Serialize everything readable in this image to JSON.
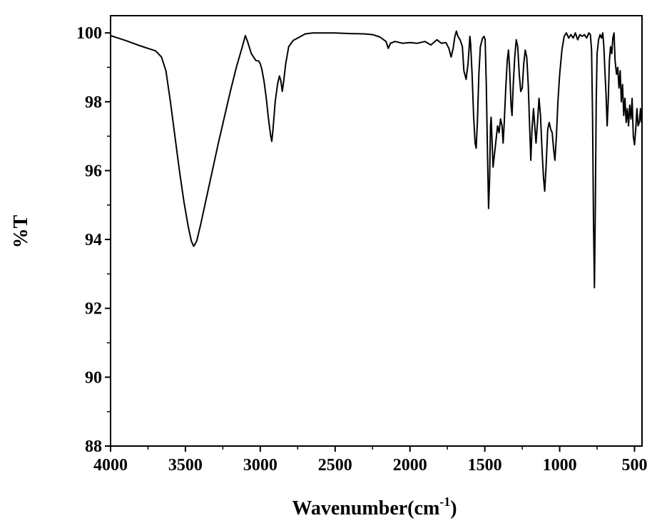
{
  "chart_data": {
    "type": "line",
    "xlabel": {
      "base": "Wavenumber(cm",
      "sup": "-1",
      "close": ")"
    },
    "ylabel": "%T",
    "xlim": [
      4000,
      450
    ],
    "ylim": [
      88,
      100.5
    ],
    "x_ticks": [
      4000,
      3500,
      3000,
      2500,
      2000,
      1500,
      1000,
      500
    ],
    "x_tick_labels": [
      "4000",
      "3500",
      "3000",
      "2500",
      "2000",
      "1500",
      "1000",
      "500"
    ],
    "y_ticks": [
      88,
      90,
      92,
      94,
      96,
      98,
      100
    ],
    "y_tick_labels": [
      "88",
      "90",
      "92",
      "94",
      "96",
      "98",
      "100"
    ],
    "grid": false,
    "series": [
      {
        "color": "#000000",
        "points": [
          [
            4000,
            99.92
          ],
          [
            3950,
            99.85
          ],
          [
            3900,
            99.78
          ],
          [
            3850,
            99.7
          ],
          [
            3800,
            99.62
          ],
          [
            3750,
            99.55
          ],
          [
            3700,
            99.48
          ],
          [
            3660,
            99.3
          ],
          [
            3630,
            98.9
          ],
          [
            3600,
            98.0
          ],
          [
            3570,
            97.0
          ],
          [
            3540,
            96.0
          ],
          [
            3510,
            95.1
          ],
          [
            3480,
            94.35
          ],
          [
            3460,
            93.95
          ],
          [
            3445,
            93.8
          ],
          [
            3425,
            93.95
          ],
          [
            3400,
            94.4
          ],
          [
            3360,
            95.2
          ],
          [
            3320,
            96.0
          ],
          [
            3280,
            96.8
          ],
          [
            3240,
            97.55
          ],
          [
            3200,
            98.3
          ],
          [
            3160,
            99.0
          ],
          [
            3120,
            99.6
          ],
          [
            3100,
            99.92
          ],
          [
            3085,
            99.75
          ],
          [
            3060,
            99.4
          ],
          [
            3030,
            99.2
          ],
          [
            3010,
            99.18
          ],
          [
            3000,
            99.1
          ],
          [
            2990,
            98.95
          ],
          [
            2975,
            98.6
          ],
          [
            2960,
            98.1
          ],
          [
            2945,
            97.5
          ],
          [
            2930,
            97.0
          ],
          [
            2923,
            96.85
          ],
          [
            2915,
            97.2
          ],
          [
            2900,
            98.0
          ],
          [
            2885,
            98.5
          ],
          [
            2872,
            98.75
          ],
          [
            2862,
            98.6
          ],
          [
            2853,
            98.3
          ],
          [
            2845,
            98.55
          ],
          [
            2830,
            99.1
          ],
          [
            2810,
            99.6
          ],
          [
            2780,
            99.78
          ],
          [
            2750,
            99.85
          ],
          [
            2700,
            99.97
          ],
          [
            2650,
            100.0
          ],
          [
            2600,
            100.0
          ],
          [
            2500,
            100.0
          ],
          [
            2400,
            99.98
          ],
          [
            2300,
            99.97
          ],
          [
            2250,
            99.95
          ],
          [
            2200,
            99.88
          ],
          [
            2160,
            99.75
          ],
          [
            2145,
            99.55
          ],
          [
            2130,
            99.7
          ],
          [
            2100,
            99.75
          ],
          [
            2050,
            99.7
          ],
          [
            2000,
            99.72
          ],
          [
            1950,
            99.7
          ],
          [
            1900,
            99.75
          ],
          [
            1860,
            99.65
          ],
          [
            1820,
            99.8
          ],
          [
            1790,
            99.7
          ],
          [
            1760,
            99.72
          ],
          [
            1740,
            99.55
          ],
          [
            1725,
            99.3
          ],
          [
            1712,
            99.55
          ],
          [
            1700,
            99.9
          ],
          [
            1690,
            100.05
          ],
          [
            1680,
            99.9
          ],
          [
            1665,
            99.8
          ],
          [
            1650,
            99.6
          ],
          [
            1640,
            98.9
          ],
          [
            1625,
            98.65
          ],
          [
            1612,
            99.1
          ],
          [
            1600,
            99.9
          ],
          [
            1595,
            99.7
          ],
          [
            1585,
            98.8
          ],
          [
            1575,
            97.6
          ],
          [
            1565,
            96.8
          ],
          [
            1558,
            96.65
          ],
          [
            1550,
            97.4
          ],
          [
            1540,
            98.8
          ],
          [
            1530,
            99.6
          ],
          [
            1515,
            99.85
          ],
          [
            1505,
            99.9
          ],
          [
            1498,
            99.8
          ],
          [
            1490,
            98.5
          ],
          [
            1482,
            96.5
          ],
          [
            1475,
            94.9
          ],
          [
            1468,
            95.8
          ],
          [
            1462,
            97.3
          ],
          [
            1458,
            97.55
          ],
          [
            1452,
            96.9
          ],
          [
            1445,
            96.1
          ],
          [
            1435,
            96.5
          ],
          [
            1425,
            96.9
          ],
          [
            1415,
            97.3
          ],
          [
            1405,
            97.1
          ],
          [
            1395,
            97.5
          ],
          [
            1385,
            97.3
          ],
          [
            1378,
            96.8
          ],
          [
            1370,
            97.4
          ],
          [
            1360,
            98.4
          ],
          [
            1350,
            99.2
          ],
          [
            1342,
            99.5
          ],
          [
            1335,
            99.0
          ],
          [
            1325,
            97.9
          ],
          [
            1318,
            97.6
          ],
          [
            1310,
            98.5
          ],
          [
            1300,
            99.3
          ],
          [
            1290,
            99.8
          ],
          [
            1280,
            99.6
          ],
          [
            1270,
            98.8
          ],
          [
            1260,
            98.3
          ],
          [
            1250,
            98.4
          ],
          [
            1240,
            99.1
          ],
          [
            1230,
            99.5
          ],
          [
            1220,
            99.3
          ],
          [
            1210,
            98.5
          ],
          [
            1200,
            97.2
          ],
          [
            1193,
            96.3
          ],
          [
            1185,
            97.2
          ],
          [
            1175,
            97.8
          ],
          [
            1165,
            97.2
          ],
          [
            1158,
            96.8
          ],
          [
            1148,
            97.4
          ],
          [
            1138,
            98.1
          ],
          [
            1128,
            97.6
          ],
          [
            1118,
            96.6
          ],
          [
            1108,
            95.8
          ],
          [
            1100,
            95.4
          ],
          [
            1090,
            96.2
          ],
          [
            1080,
            97.2
          ],
          [
            1070,
            97.4
          ],
          [
            1060,
            97.2
          ],
          [
            1050,
            97.1
          ],
          [
            1040,
            96.6
          ],
          [
            1032,
            96.3
          ],
          [
            1022,
            97.0
          ],
          [
            1012,
            98.0
          ],
          [
            1000,
            98.8
          ],
          [
            985,
            99.5
          ],
          [
            970,
            99.9
          ],
          [
            955,
            100.0
          ],
          [
            940,
            99.85
          ],
          [
            925,
            99.95
          ],
          [
            910,
            99.85
          ],
          [
            895,
            100.0
          ],
          [
            880,
            99.8
          ],
          [
            865,
            99.95
          ],
          [
            850,
            99.9
          ],
          [
            835,
            99.95
          ],
          [
            820,
            99.85
          ],
          [
            805,
            100.0
          ],
          [
            795,
            99.95
          ],
          [
            787,
            99.5
          ],
          [
            780,
            97.5
          ],
          [
            774,
            94.5
          ],
          [
            768,
            92.6
          ],
          [
            762,
            94.8
          ],
          [
            756,
            98.0
          ],
          [
            750,
            99.4
          ],
          [
            740,
            99.8
          ],
          [
            730,
            99.95
          ],
          [
            720,
            99.85
          ],
          [
            712,
            100.0
          ],
          [
            705,
            99.6
          ],
          [
            697,
            98.8
          ],
          [
            690,
            98.2
          ],
          [
            683,
            97.3
          ],
          [
            676,
            98.0
          ],
          [
            668,
            99.2
          ],
          [
            660,
            99.6
          ],
          [
            652,
            99.4
          ],
          [
            645,
            99.85
          ],
          [
            637,
            100.0
          ],
          [
            630,
            99.2
          ],
          [
            620,
            98.8
          ],
          [
            612,
            99.0
          ],
          [
            604,
            98.4
          ],
          [
            596,
            98.9
          ],
          [
            588,
            98.0
          ],
          [
            580,
            98.5
          ],
          [
            572,
            97.6
          ],
          [
            564,
            98.1
          ],
          [
            556,
            97.4
          ],
          [
            548,
            97.8
          ],
          [
            540,
            97.3
          ],
          [
            532,
            97.9
          ],
          [
            524,
            97.5
          ],
          [
            516,
            98.1
          ],
          [
            508,
            97.0
          ],
          [
            500,
            96.75
          ],
          [
            492,
            97.2
          ],
          [
            484,
            97.8
          ],
          [
            476,
            97.3
          ],
          [
            468,
            97.4
          ],
          [
            460,
            97.8
          ],
          [
            455,
            97.4
          ]
        ]
      }
    ]
  }
}
